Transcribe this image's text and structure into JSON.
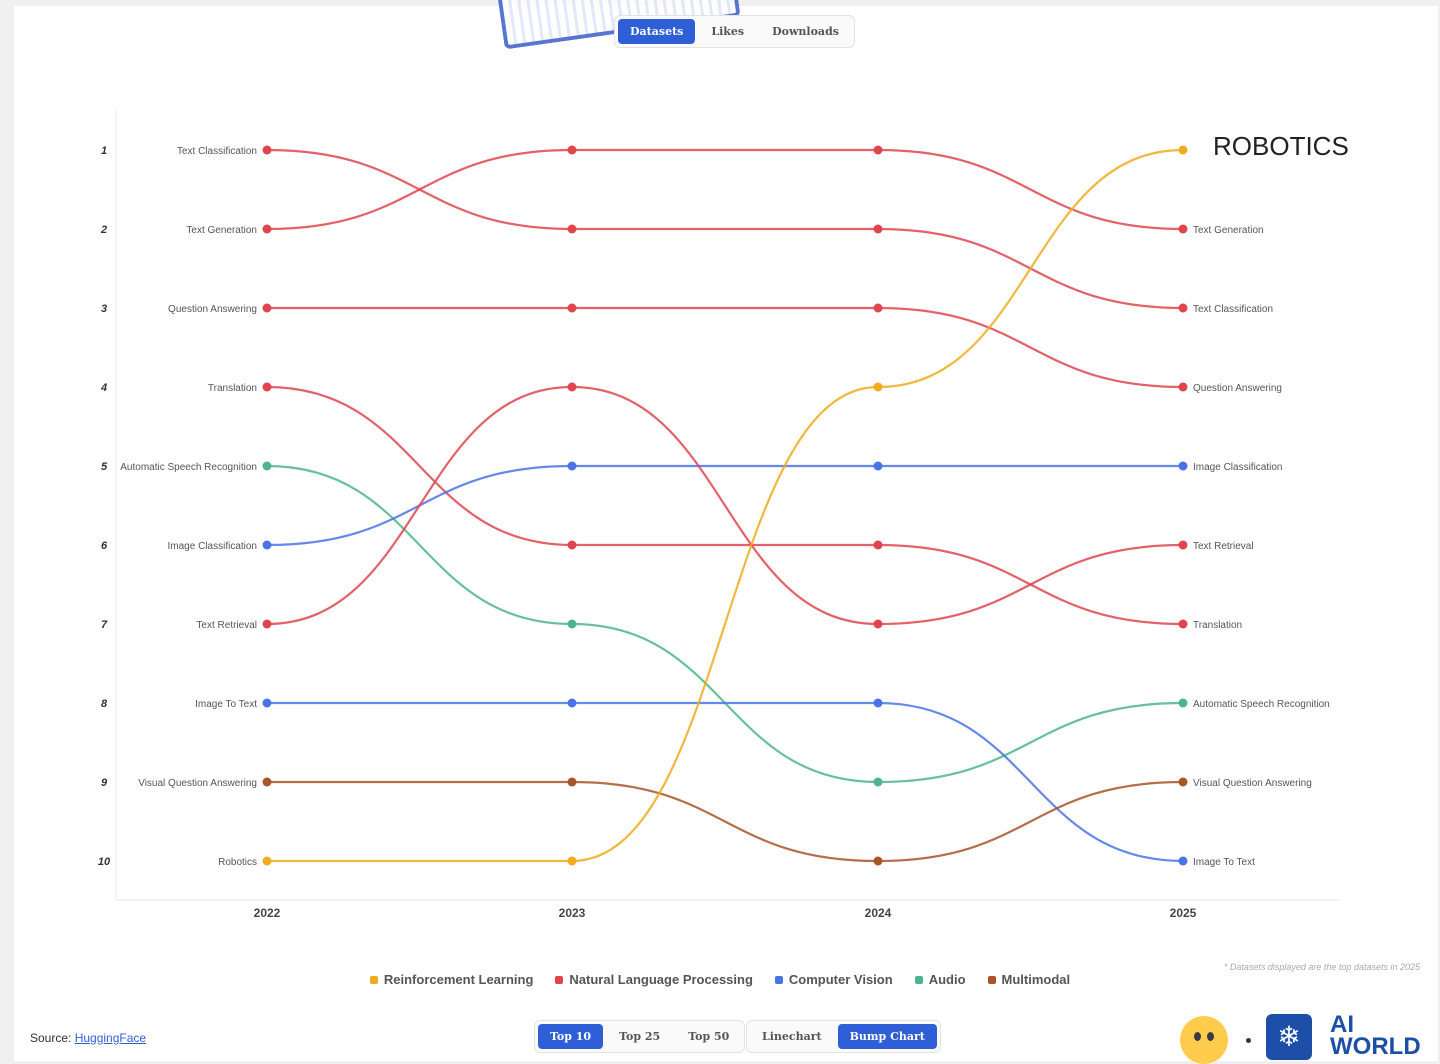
{
  "toggles": {
    "metric": [
      "Datasets",
      "Likes",
      "Downloads"
    ],
    "metric_active": 0,
    "top": [
      "Top 10",
      "Top 25",
      "Top 50"
    ],
    "top_active": 0,
    "view": [
      "Linechart",
      "Bump Chart"
    ],
    "view_active": 1
  },
  "colors": {
    "Reinforcement Learning": "#f0ac1c",
    "Natural Language Processing": "#e0454f",
    "Computer Vision": "#4a74e6",
    "Audio": "#4db589",
    "Multimodal": "#a9552a"
  },
  "annotation": "ROBOTICS",
  "footnote": "* Datasets displayed are the top datasets in 2025",
  "source": {
    "label": "Source:",
    "link": "HuggingFace"
  },
  "logo_text": {
    "line1": "AI",
    "line2": "WORLD"
  },
  "chart_data": {
    "type": "bump",
    "x": [
      "2022",
      "2023",
      "2024",
      "2025"
    ],
    "y_ticks": [
      "1",
      "2",
      "3",
      "4",
      "5",
      "6",
      "7",
      "8",
      "9",
      "10"
    ],
    "ylim": [
      1,
      10
    ],
    "y_inverted": true,
    "grid": false,
    "legend_position": "bottom",
    "legend": [
      "Reinforcement Learning",
      "Natural Language Processing",
      "Computer Vision",
      "Audio",
      "Multimodal"
    ],
    "series": [
      {
        "name": "Text Classification",
        "category": "Natural Language Processing",
        "ranks": [
          1,
          2,
          2,
          3
        ]
      },
      {
        "name": "Text Generation",
        "category": "Natural Language Processing",
        "ranks": [
          2,
          1,
          1,
          2
        ]
      },
      {
        "name": "Question Answering",
        "category": "Natural Language Processing",
        "ranks": [
          3,
          3,
          3,
          4
        ]
      },
      {
        "name": "Translation",
        "category": "Natural Language Processing",
        "ranks": [
          4,
          6,
          6,
          7
        ]
      },
      {
        "name": "Automatic Speech Recognition",
        "category": "Audio",
        "ranks": [
          5,
          7,
          9,
          8
        ]
      },
      {
        "name": "Image Classification",
        "category": "Computer Vision",
        "ranks": [
          6,
          5,
          5,
          5
        ]
      },
      {
        "name": "Text Retrieval",
        "category": "Natural Language Processing",
        "ranks": [
          7,
          4,
          7,
          6
        ]
      },
      {
        "name": "Image To Text",
        "category": "Computer Vision",
        "ranks": [
          8,
          8,
          8,
          10
        ]
      },
      {
        "name": "Visual Question Answering",
        "category": "Multimodal",
        "ranks": [
          9,
          9,
          10,
          9
        ]
      },
      {
        "name": "Robotics",
        "category": "Reinforcement Learning",
        "ranks": [
          10,
          10,
          4,
          1
        ]
      }
    ]
  }
}
